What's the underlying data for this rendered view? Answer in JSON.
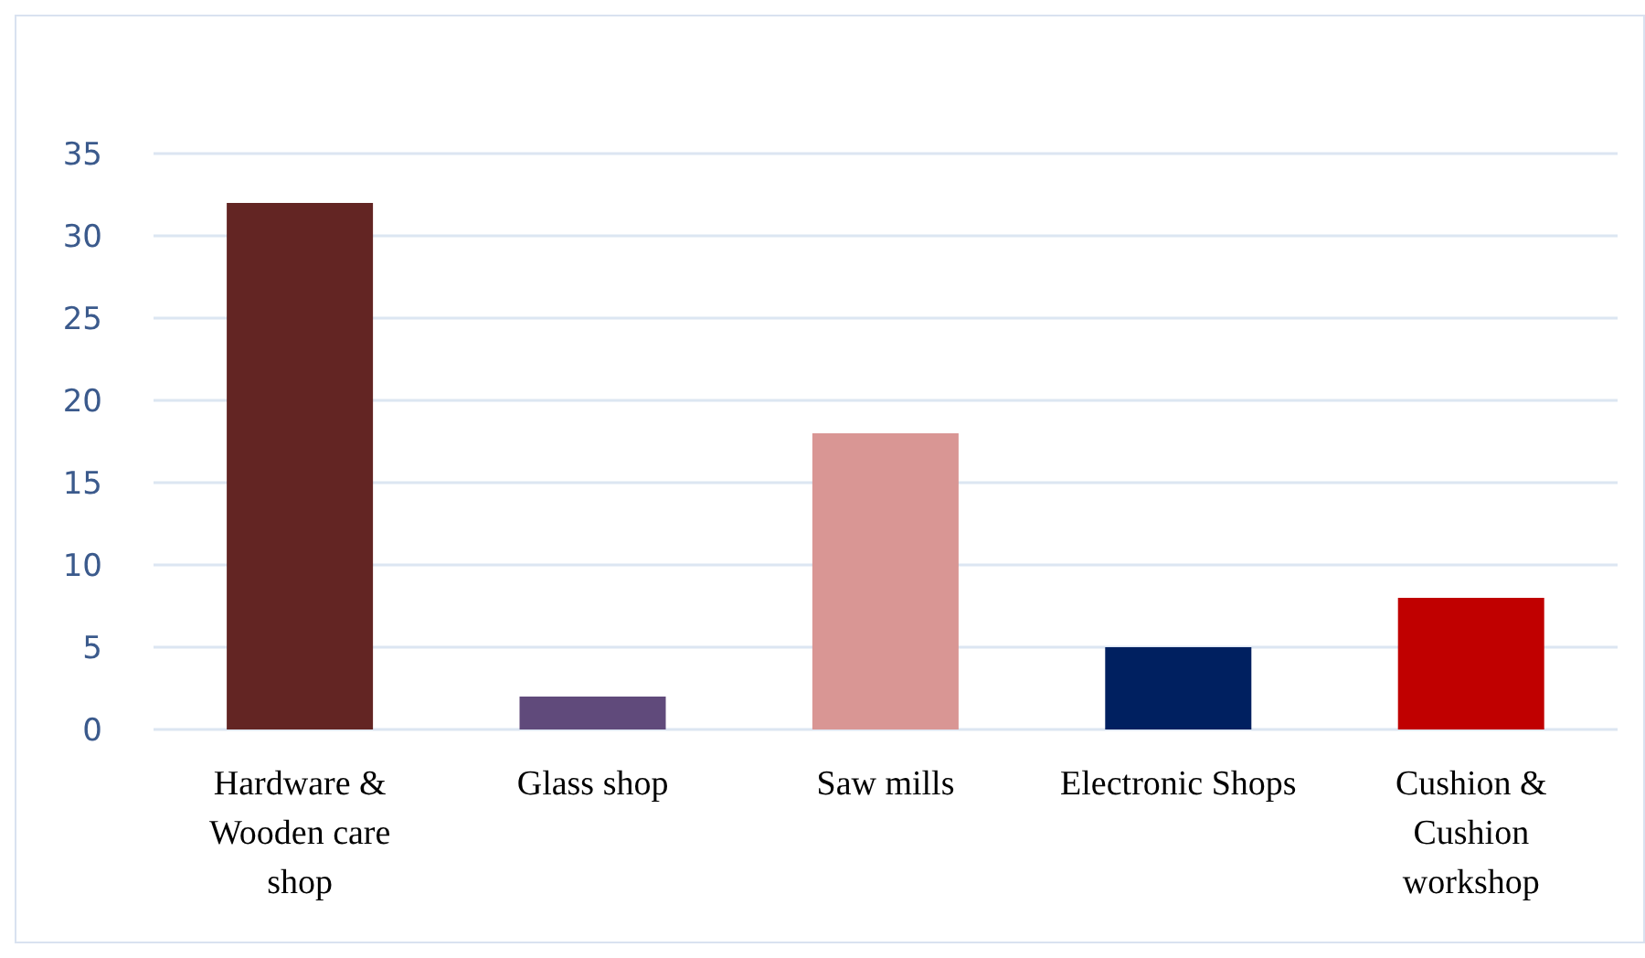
{
  "chart_data": {
    "type": "bar",
    "categories": [
      "Hardware & Wooden care shop",
      "Glass shop",
      "Saw mills",
      "Electronic Shops",
      "Cushion & Cushion workshop"
    ],
    "values": [
      32,
      2,
      18,
      5,
      8
    ],
    "colors": [
      "#632523",
      "#604a7b",
      "#d99694",
      "#002060",
      "#c00000"
    ],
    "ylim": [
      0,
      35
    ],
    "yticks": [
      0,
      5,
      10,
      15,
      20,
      25,
      30,
      35
    ],
    "grid": "y"
  }
}
